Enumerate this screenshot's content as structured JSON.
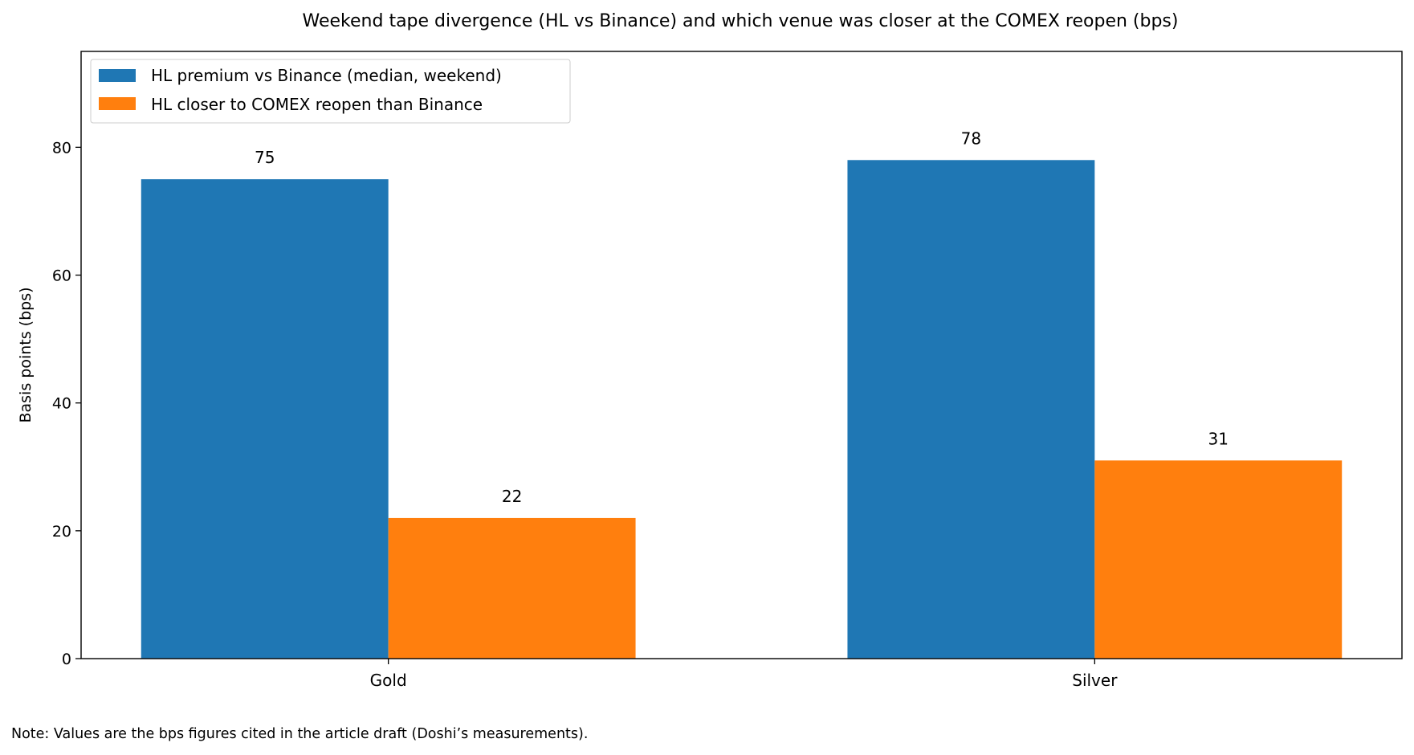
{
  "chart_data": {
    "type": "bar",
    "title": "Weekend tape divergence (HL vs Binance) and which venue was closer at the COMEX reopen (bps)",
    "xlabel": "",
    "ylabel": "Basis points (bps)",
    "categories": [
      "Gold",
      "Silver"
    ],
    "series": [
      {
        "name": "HL premium vs Binance (median, weekend)",
        "values": [
          75,
          78
        ],
        "color": "#1f77b4"
      },
      {
        "name": "HL closer to COMEX reopen than Binance",
        "values": [
          22,
          31
        ],
        "color": "#ff7f0e"
      }
    ],
    "ylim": [
      0,
      95
    ],
    "yticks": [
      0,
      20,
      40,
      60,
      80
    ],
    "grid": false,
    "legend_placement": "top-left",
    "data_labels": true
  },
  "note": "Note: Values are the bps figures cited in the article draft (Doshi’s measurements)."
}
